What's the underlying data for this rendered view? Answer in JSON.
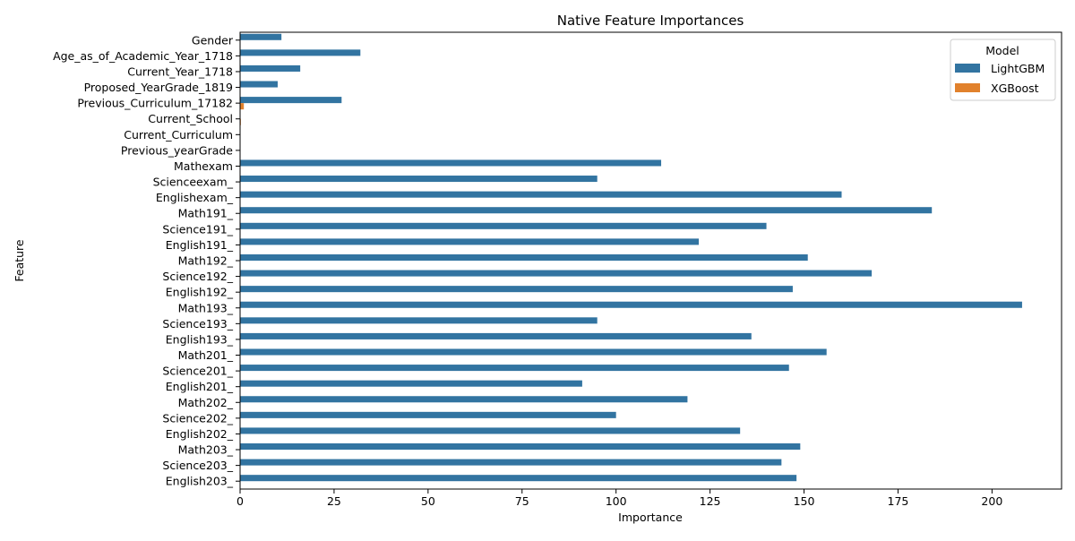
{
  "chart_data": {
    "type": "bar",
    "orientation": "horizontal",
    "title": "Native Feature Importances",
    "xlabel": "Importance",
    "ylabel": "Feature",
    "xlim": [
      0,
      218.5
    ],
    "xticks": [
      0,
      25,
      50,
      75,
      100,
      125,
      150,
      175,
      200
    ],
    "grid": false,
    "legend": {
      "title": "Model",
      "placement": "top-right"
    },
    "categories": [
      "Gender",
      "Age_as_of_Academic_Year_1718",
      "Current_Year_1718",
      "Proposed_YearGrade_1819",
      "Previous_Curriculum_17182",
      "Current_School",
      "Current_Curriculum",
      "Previous_yearGrade",
      "Mathexam",
      "Scienceexam_",
      "Englishexam_",
      "Math191_",
      "Science191_",
      "English191_",
      "Math192_",
      "Science192_",
      "English192_",
      "Math193_",
      "Science193_",
      "English193_",
      "Math201_",
      "Science201_",
      "English201_",
      "Math202_",
      "Science202_",
      "English202_",
      "Math203_",
      "Science203_",
      "English203_"
    ],
    "series": [
      {
        "name": "LightGBM",
        "color": "#3274a1",
        "values": [
          11,
          32,
          16,
          10,
          27,
          0,
          0,
          0,
          112,
          95,
          160,
          184,
          140,
          122,
          151,
          168,
          147,
          208,
          95,
          136,
          156,
          146,
          91,
          119,
          100,
          133,
          149,
          144,
          148
        ]
      },
      {
        "name": "XGBoost",
        "color": "#e1812c",
        "values": [
          0,
          0,
          0,
          0,
          1,
          0.2,
          0,
          0,
          0,
          0,
          0,
          0,
          0,
          0,
          0,
          0,
          0,
          0,
          0,
          0,
          0,
          0,
          0,
          0,
          0,
          0,
          0,
          0,
          0
        ]
      }
    ]
  }
}
